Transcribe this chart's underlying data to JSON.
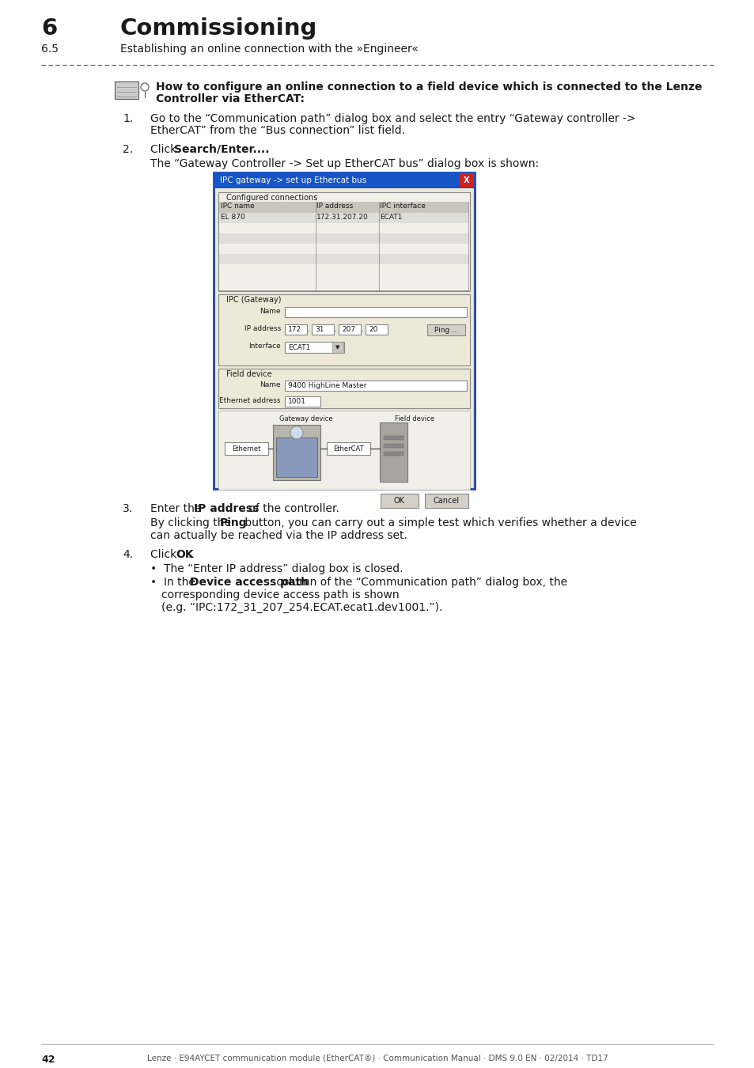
{
  "page_bg": "#ffffff",
  "title_number": "6",
  "title_text": "Commissioning",
  "subtitle_number": "6.5",
  "subtitle_text": "Establishing an online connection with the »Engineer«",
  "note_bold_text_line1": "How to configure an online connection to a field device which is connected to the Lenze",
  "note_bold_text_line2": "Controller via EtherCAT:",
  "step1_line1": "Go to the “Communication path” dialog box and select the entry “Gateway controller ->",
  "step1_line2": "EtherCAT” from the “Bus connection” list field.",
  "step2_prefix": "Click ",
  "step2_bold": "Search/Enter....",
  "step2_sub": "The “Gateway Controller -> Set up EtherCAT bus” dialog box is shown:",
  "step3_prefix": "Enter the ",
  "step3_bold": "IP address",
  "step3_suffix": " of the controller.",
  "step3_sub_line1": "By clicking the ",
  "step3_sub_bold": "Ping",
  "step3_sub_line1_rest": " button, you can carry out a simple test which verifies whether a device",
  "step3_sub_line2": "can actually be reached via the IP address set.",
  "step4_prefix": "Click ",
  "step4_bold": "OK",
  "step4_suffix": ".",
  "bullet1": "The “Enter IP address” dialog box is closed.",
  "bullet2_prefix": "In the ",
  "bullet2_bold": "Device access path",
  "bullet2_suffix": " column of the “Communication path” dialog box, the",
  "bullet2_line2": "corresponding device access path is shown",
  "bullet2_line3": "(e.g. “IPC:172_31_207_254.ECAT.ecat1.dev1001.”).",
  "footer_text": "Lenze · E94AYCET communication module (EtherCAT®) · Communication Manual · DMS 9.0 EN · 02/2014 · TD17",
  "page_number": "42",
  "dialog_title": "IPC gateway -> set up Ethercat bus",
  "dialog_title_bg": "#1655c8",
  "dialog_close_btn_bg": "#cc2222",
  "dialog_bg": "#d4d0c8",
  "dialog_inner_bg": "#ece9d8",
  "dialog_section1_label": "Configured connections",
  "dialog_col1": "IPC name",
  "dialog_col2": "IP address",
  "dialog_col3": "IPC interface",
  "dialog_row1_col1": "EL 870",
  "dialog_row1_col2": "172.31.207.20",
  "dialog_row1_col3": "ECAT1",
  "dialog_section2_label": "IPC (Gateway)",
  "dialog_name_label": "Name",
  "dialog_ip_label": "IP address",
  "dialog_ip_vals": [
    "172",
    "31",
    "207",
    "20"
  ],
  "dialog_ping_btn": "Ping ...",
  "dialog_interface_label": "Interface",
  "dialog_interface_val": "ECAT1",
  "dialog_section3_label": "Field device",
  "dialog_field_name_label": "Name",
  "dialog_field_name_val": "9400 HighLine Master",
  "dialog_ethercat_addr_label": "Ethernet address",
  "dialog_ethercat_addr_val": "1001",
  "dialog_ok_btn": "OK",
  "dialog_cancel_btn": "Cancel",
  "dialog_gateway_label": "Gateway device",
  "dialog_field_label": "Field device",
  "dialog_ethernet_conn_label": "Ethernet",
  "dialog_ethercat_conn_label": "EtherCAT"
}
